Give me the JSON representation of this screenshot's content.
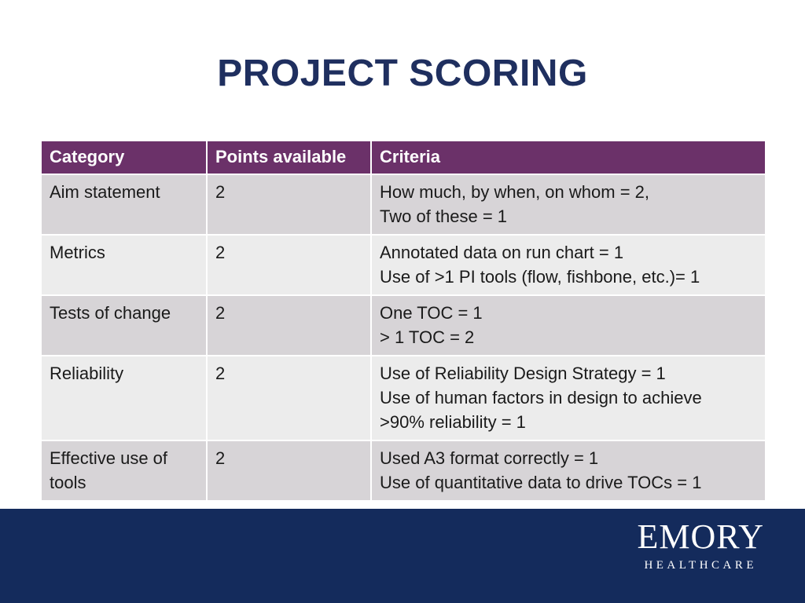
{
  "slide": {
    "title": "PROJECT SCORING"
  },
  "table": {
    "headers": [
      "Category",
      "Points available",
      "Criteria"
    ],
    "rows": [
      {
        "category": "Aim statement",
        "points": "2",
        "criteria": [
          "How much, by when, on whom = 2,",
          "Two of these = 1"
        ]
      },
      {
        "category": "Metrics",
        "points": "2",
        "criteria": [
          "Annotated data on run chart = 1",
          "Use of >1 PI tools (flow, fishbone, etc.)= 1"
        ]
      },
      {
        "category": "Tests of change",
        "points": "2",
        "criteria": [
          "One TOC = 1",
          "> 1 TOC = 2"
        ]
      },
      {
        "category": "Reliability",
        "points": "2",
        "criteria": [
          "Use of Reliability Design Strategy = 1",
          "Use of human factors in design to achieve",
          ">90% reliability = 1"
        ]
      },
      {
        "category": "Effective use of tools",
        "points": "2",
        "criteria": [
          "Used A3 format correctly = 1",
          "Use of quantitative data to drive TOCs = 1"
        ]
      }
    ]
  },
  "footer": {
    "logo_word": "EMORY",
    "logo_sub": "HEALTHCARE"
  },
  "colors": {
    "title": "#1f2f5f",
    "header_bg": "#6b3169",
    "row_dark": "#d7d4d7",
    "row_light": "#ececec",
    "footer_bg": "#142b5c"
  }
}
